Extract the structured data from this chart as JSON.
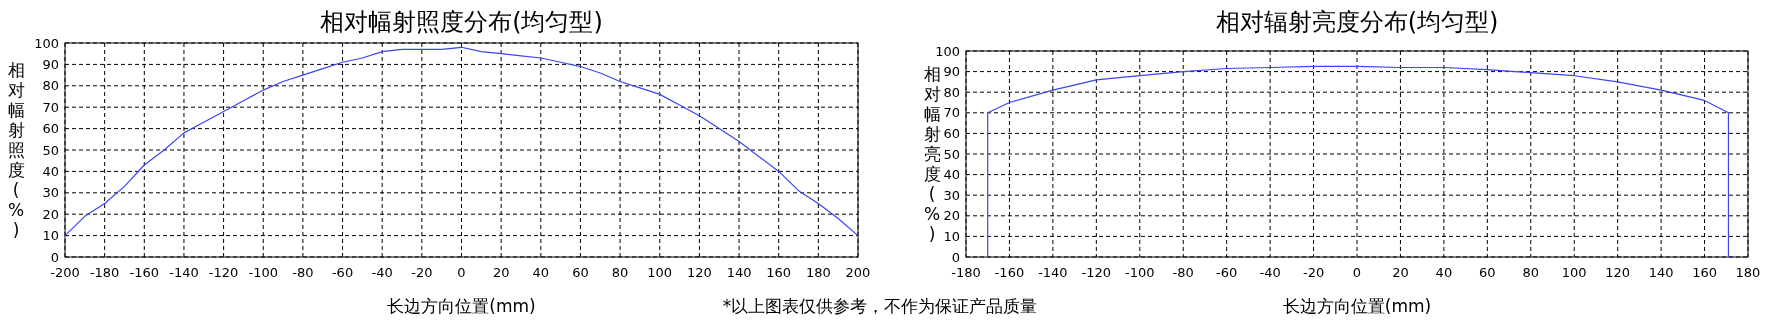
{
  "chart_data": [
    {
      "type": "line",
      "title": "相对幅射照度分布(均匀型)",
      "xlabel": "长边方向位置(mm)",
      "ylabel": "相对幅射照度(%)",
      "annotations": [
        "*以上图表仅供参考，不作为保证产品质量"
      ],
      "grid": true,
      "xlim": [
        -200,
        200
      ],
      "ylim": [
        0,
        100
      ],
      "xticks": [
        -200,
        -180,
        -160,
        -140,
        -120,
        -100,
        -80,
        -60,
        -40,
        -20,
        0,
        20,
        40,
        60,
        80,
        100,
        120,
        140,
        160,
        180,
        200
      ],
      "yticks": [
        0,
        10,
        20,
        30,
        40,
        50,
        60,
        70,
        80,
        90,
        100
      ],
      "x": [
        -200,
        -190,
        -180,
        -170,
        -160,
        -150,
        -140,
        -130,
        -120,
        -110,
        -100,
        -90,
        -80,
        -70,
        -60,
        -50,
        -40,
        -30,
        -20,
        -10,
        0,
        10,
        20,
        30,
        40,
        50,
        60,
        70,
        80,
        90,
        100,
        110,
        120,
        130,
        140,
        150,
        160,
        170,
        180,
        190,
        200
      ],
      "series": [
        {
          "color": "#3a46f0",
          "values": [
            10,
            19,
            25,
            33,
            43,
            50,
            58,
            63,
            68,
            73,
            78,
            82,
            85,
            88,
            91,
            93,
            96,
            97,
            97,
            97,
            98,
            96,
            95,
            94,
            93,
            91,
            89,
            86,
            82,
            79,
            76,
            71,
            66,
            60,
            54,
            47,
            40,
            31,
            25,
            18,
            10
          ]
        }
      ]
    },
    {
      "type": "line",
      "title": "相对辐射亮度分布(均匀型)",
      "xlabel": "长边方向位置(mm)",
      "ylabel": "相对幅射亮度(%)",
      "grid": true,
      "xlim": [
        -180,
        180
      ],
      "ylim": [
        0,
        100
      ],
      "xticks": [
        -180,
        -160,
        -140,
        -120,
        -100,
        -80,
        -60,
        -40,
        -20,
        0,
        20,
        40,
        60,
        80,
        100,
        120,
        140,
        160,
        180
      ],
      "yticks": [
        0,
        10,
        20,
        30,
        40,
        50,
        60,
        70,
        80,
        90,
        100
      ],
      "x": [
        -170,
        -170,
        -160,
        -140,
        -120,
        -100,
        -80,
        -60,
        -40,
        -20,
        0,
        20,
        40,
        60,
        80,
        100,
        120,
        140,
        160,
        171,
        171
      ],
      "series": [
        {
          "color": "#3a46f0",
          "values": [
            0,
            70,
            75,
            81,
            86,
            88,
            90,
            91.5,
            92,
            92.5,
            92.5,
            92,
            92,
            91,
            89.5,
            88,
            85,
            81,
            76,
            70,
            0
          ]
        }
      ]
    }
  ]
}
